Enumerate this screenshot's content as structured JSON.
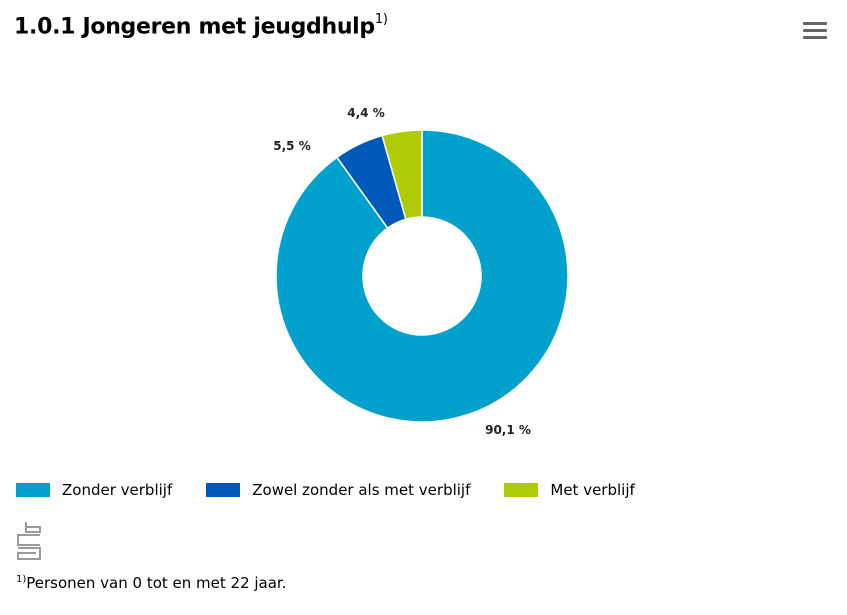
{
  "header": {
    "title": "1.0.1 Jongeren met jeugdhulp",
    "title_sup": "1)"
  },
  "menu": {
    "icon": "hamburger-menu-icon"
  },
  "chart_data": {
    "type": "pie",
    "variant": "donut",
    "categories": [
      "Zonder verblijf",
      "Zowel zonder als met verblijf",
      "Met verblijf"
    ],
    "values": [
      90.1,
      5.5,
      4.4
    ],
    "labels": [
      "90,1 %",
      "5,5 %",
      "4,4 %"
    ],
    "colors": [
      "#00a1cd",
      "#0058b8",
      "#afcb05"
    ],
    "legend_position": "bottom-left"
  },
  "footnote": {
    "marker": "1)",
    "text": "Personen van 0 tot en met 22 jaar."
  },
  "logo": {
    "icon": "cbs-logo-icon"
  }
}
